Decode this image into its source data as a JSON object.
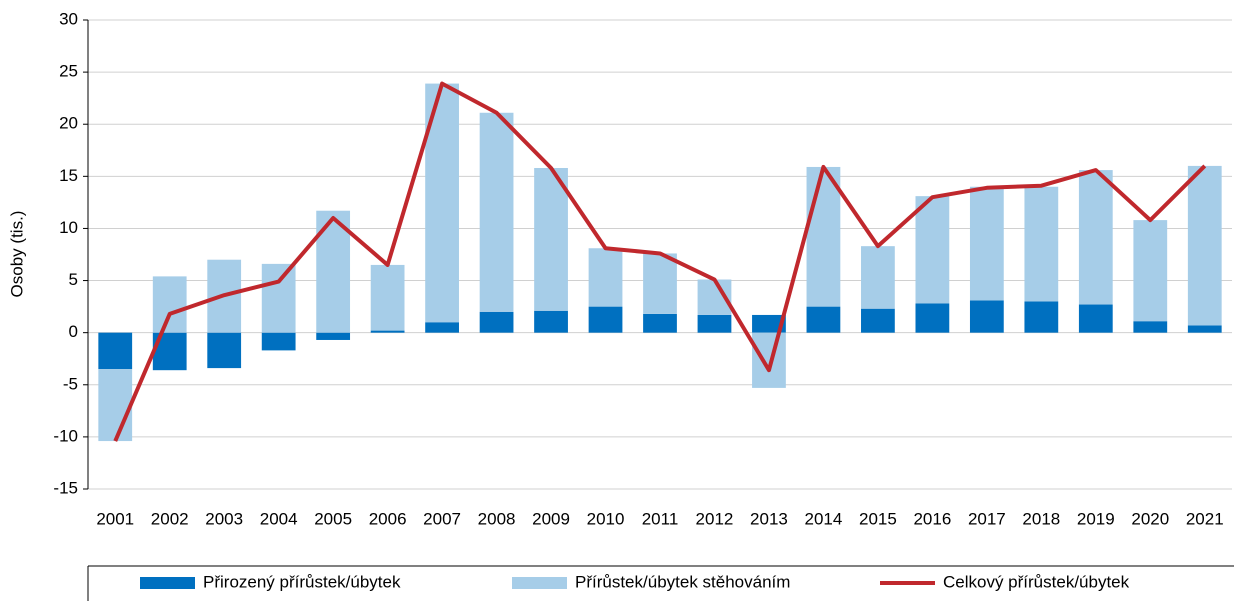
{
  "chart_data": {
    "type": "bar+line",
    "y_label": "Osoby (tis.)",
    "categories": [
      "2001",
      "2002",
      "2003",
      "2004",
      "2005",
      "2006",
      "2007",
      "2008",
      "2009",
      "2010",
      "2011",
      "2012",
      "2013",
      "2014",
      "2015",
      "2016",
      "2017",
      "2018",
      "2019",
      "2020",
      "2021"
    ],
    "series": [
      {
        "name": "Přirozený přírůstek/úbytek",
        "type": "bar",
        "color": "#0070c0",
        "values": [
          -3.5,
          -3.6,
          -3.4,
          -1.7,
          -0.7,
          0.2,
          1.0,
          2.0,
          2.1,
          2.5,
          1.8,
          1.7,
          1.7,
          2.5,
          2.3,
          2.8,
          3.1,
          3.0,
          2.7,
          1.1,
          0.7
        ]
      },
      {
        "name": "Přírůstek/úbytek stěhováním",
        "type": "bar",
        "color": "#a6cde8",
        "values": [
          -6.9,
          5.4,
          7.0,
          6.6,
          11.7,
          6.3,
          22.9,
          19.1,
          13.7,
          5.6,
          5.8,
          3.4,
          -5.3,
          13.4,
          6.0,
          10.3,
          10.9,
          11.0,
          12.9,
          9.7,
          15.3
        ]
      },
      {
        "name": "Celkový přírůstek/úbytek",
        "type": "line",
        "color": "#c0282d",
        "values": [
          -10.4,
          1.8,
          3.6,
          4.9,
          11.0,
          6.5,
          23.9,
          21.1,
          15.8,
          8.1,
          7.6,
          5.1,
          -3.6,
          15.9,
          8.3,
          13.0,
          13.9,
          14.1,
          15.6,
          10.8,
          16.0
        ]
      }
    ],
    "ylim": [
      -15,
      30
    ],
    "yticks": [
      -15,
      -10,
      -5,
      0,
      5,
      10,
      15,
      20,
      25,
      30
    ],
    "grid": true,
    "legend": "bottom"
  }
}
